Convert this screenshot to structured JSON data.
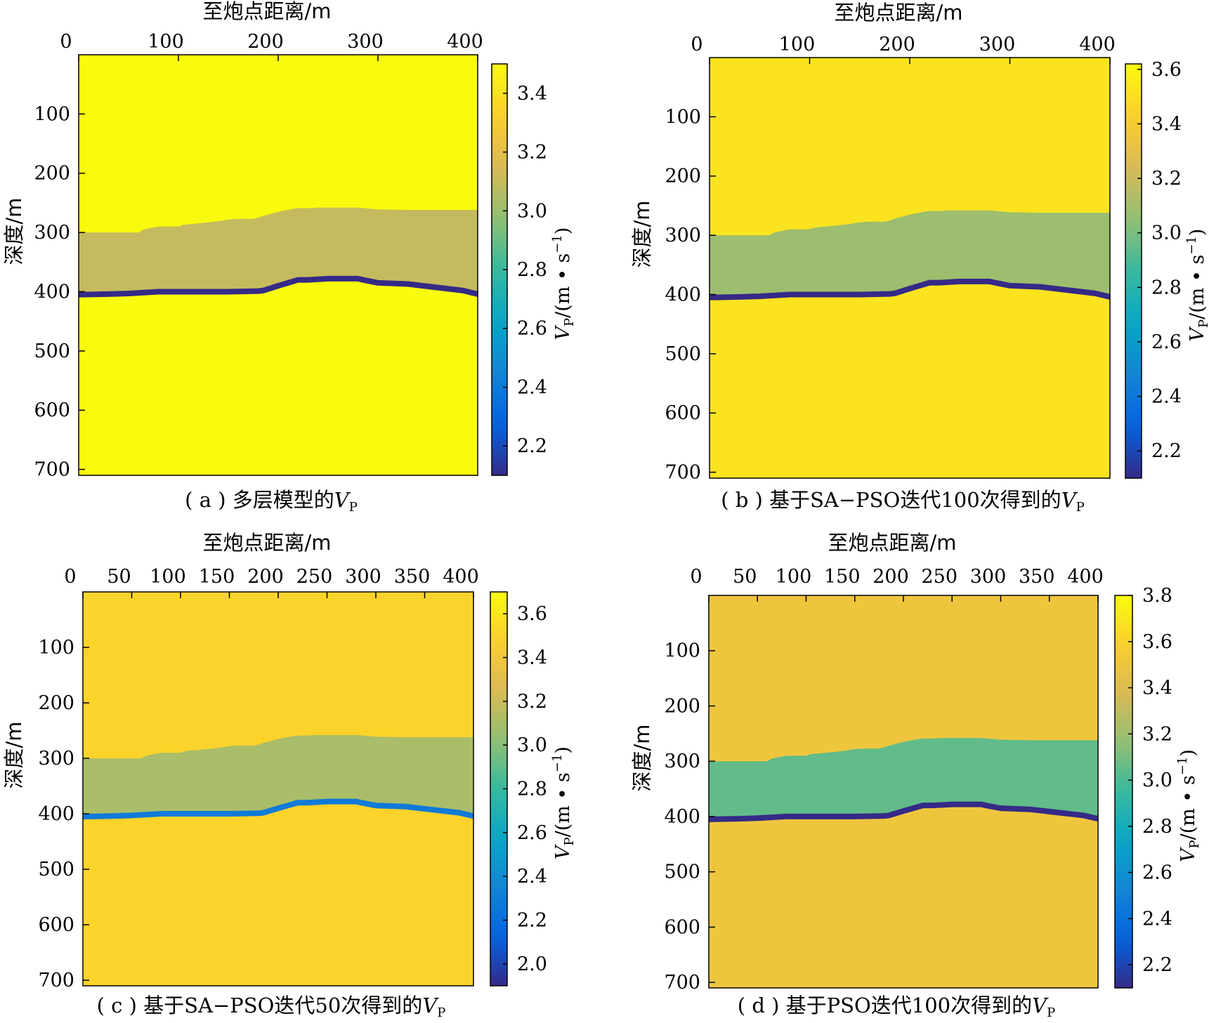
{
  "chart_data": [
    {
      "type": "heatmap",
      "xlabel": "至炮点距离/m",
      "ylabel": "深度/m",
      "xlim": [
        0,
        400
      ],
      "ylim": [
        0,
        710
      ],
      "xticks": [
        0,
        100,
        200,
        300,
        400
      ],
      "yticks": [
        100,
        200,
        300,
        400,
        500,
        600,
        700
      ],
      "colorbar": {
        "label": "VP/(m • s−1)",
        "ticks": [
          2.2,
          2.4,
          2.6,
          2.8,
          3.0,
          3.2,
          3.4
        ],
        "range": [
          2.1,
          3.5
        ]
      },
      "caption": "( a ) 多层模型的VP",
      "layers": {
        "top_value": 3.5,
        "middle_value": 3.1,
        "bottom_value": 3.5,
        "interface_value": 2.1
      }
    },
    {
      "type": "heatmap",
      "xlabel": "至炮点距离/m",
      "ylabel": "深度/m",
      "xlim": [
        0,
        400
      ],
      "ylim": [
        0,
        710
      ],
      "xticks": [
        0,
        100,
        200,
        300,
        400
      ],
      "yticks": [
        100,
        200,
        300,
        400,
        500,
        600,
        700
      ],
      "colorbar": {
        "label": "VP/(m • s−1)",
        "ticks": [
          2.2,
          2.4,
          2.6,
          2.8,
          3.0,
          3.2,
          3.4,
          3.6
        ],
        "range": [
          2.1,
          3.62
        ]
      },
      "caption": "( b ) 基于SA−PSO迭代100次得到的VP",
      "layers": {
        "top_value": 3.52,
        "middle_value": 3.08,
        "bottom_value": 3.52,
        "interface_value": 2.1
      }
    },
    {
      "type": "heatmap",
      "xlabel": "至炮点距离/m",
      "ylabel": "深度/m",
      "xlim": [
        0,
        400
      ],
      "ylim": [
        0,
        710
      ],
      "xticks": [
        0,
        50,
        100,
        150,
        200,
        250,
        300,
        350,
        400
      ],
      "yticks": [
        100,
        200,
        300,
        400,
        500,
        600,
        700
      ],
      "colorbar": {
        "label": "VP/(m • s−1)",
        "ticks": [
          2.0,
          2.2,
          2.4,
          2.6,
          2.8,
          3.0,
          3.2,
          3.4,
          3.6
        ],
        "range": [
          1.9,
          3.7
        ]
      },
      "caption": "( c ) 基于SA−PSO迭代50次得到的VP",
      "layers": {
        "top_value": 3.5,
        "middle_value": 3.1,
        "bottom_value": 3.5,
        "interface_value": 2.28
      }
    },
    {
      "type": "heatmap",
      "xlabel": "至炮点距离/m",
      "ylabel": "深度/m",
      "xlim": [
        0,
        400
      ],
      "ylim": [
        0,
        710
      ],
      "xticks": [
        0,
        50,
        100,
        150,
        200,
        250,
        300,
        350,
        400
      ],
      "yticks": [
        100,
        200,
        300,
        400,
        500,
        600,
        700
      ],
      "colorbar": {
        "label": "VP/(m • s−1)",
        "ticks": [
          2.2,
          2.4,
          2.6,
          2.8,
          3.0,
          3.2,
          3.4,
          3.6,
          3.8
        ],
        "range": [
          2.1,
          3.8
        ]
      },
      "caption": "( d ) 基于PSO迭代100次得到的VP",
      "layers": {
        "top_value": 3.5,
        "middle_value": 3.05,
        "bottom_value": 3.5,
        "interface_value": 2.1
      }
    }
  ],
  "colors": {
    "viridis": [
      "#440154",
      "#482878",
      "#3e4989",
      "#31688e",
      "#26828e",
      "#1f9e89",
      "#35b779",
      "#6ece58",
      "#b5de2b",
      "#fde725"
    ],
    "parula": [
      "#352a87",
      "#0363e1",
      "#1485d4",
      "#06a7c6",
      "#38b99e",
      "#92bf73",
      "#d9ba56",
      "#fcce2e",
      "#f9fb0e"
    ]
  }
}
